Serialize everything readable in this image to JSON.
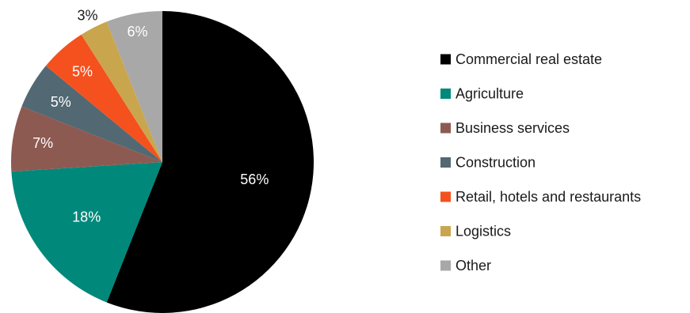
{
  "chart_data": {
    "type": "pie",
    "title": "",
    "start_angle_deg": 0,
    "direction": "clockwise",
    "legend_position": "right",
    "slices": [
      {
        "label": "Commercial real estate",
        "value": 56,
        "display": "56%",
        "color": "#000000",
        "label_color": "#ffffff"
      },
      {
        "label": "Agriculture",
        "value": 18,
        "display": "18%",
        "color": "#00897b",
        "label_color": "#ffffff"
      },
      {
        "label": "Business services",
        "value": 7,
        "display": "7%",
        "color": "#8d5a52",
        "label_color": "#ffffff"
      },
      {
        "label": "Construction",
        "value": 5,
        "display": "5%",
        "color": "#526873",
        "label_color": "#ffffff"
      },
      {
        "label": "Retail, hotels and restaurants",
        "value": 5,
        "display": "5%",
        "color": "#f4511e",
        "label_color": "#ffffff"
      },
      {
        "label": "Logistics",
        "value": 3,
        "display": "3%",
        "color": "#c9a64e",
        "label_color": "#1a1a1a"
      },
      {
        "label": "Other",
        "value": 6,
        "display": "6%",
        "color": "#a8a8a8",
        "label_color": "#ffffff"
      }
    ]
  }
}
